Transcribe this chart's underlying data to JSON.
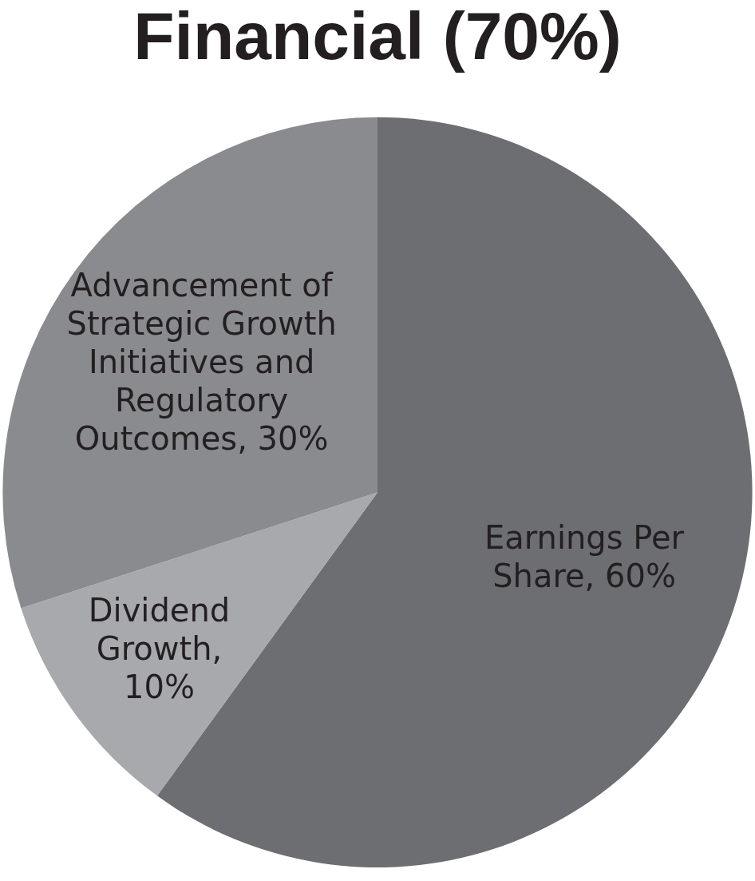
{
  "chart_data": {
    "type": "pie",
    "title": "Financial (70%)",
    "categories": [
      "Earnings Per Share",
      "Dividend Growth",
      "Advancement of Strategic Growth Initiatives and Regulatory Outcomes"
    ],
    "values": [
      60,
      10,
      30
    ],
    "colors": [
      "#6d6e71",
      "#a7a9ac",
      "#8a8b8e"
    ],
    "value_labels": [
      ", 60%",
      ", 10%",
      ", 30%"
    ],
    "legend": false
  }
}
